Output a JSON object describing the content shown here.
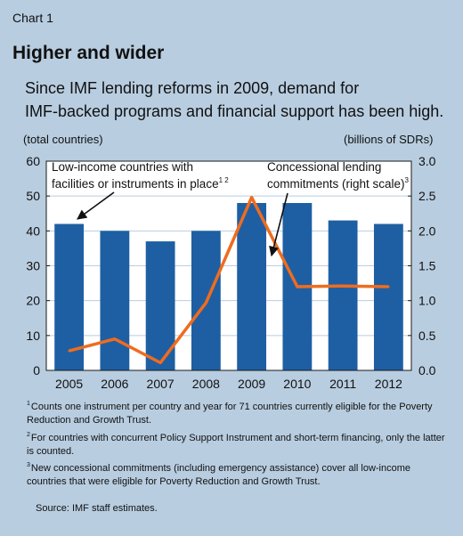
{
  "chart_label": "Chart 1",
  "title": "Higher and wider",
  "subtitle_line1": "Since IMF lending reforms in 2009, demand for",
  "subtitle_line2": "IMF-backed programs and financial support has been high.",
  "left_axis_unit": "(total countries)",
  "right_axis_unit": "(billions of SDRs)",
  "chart_data": {
    "type": "bar+line",
    "categories": [
      "2005",
      "2006",
      "2007",
      "2008",
      "2009",
      "2010",
      "2011",
      "2012"
    ],
    "series": [
      {
        "label_line1": "Low-income countries with",
        "label_line2": "facilities or instruments in place",
        "label_sup": "1 2",
        "type": "bar",
        "axis": "left",
        "color": "#1e5fa3",
        "values": [
          42,
          40,
          37,
          40,
          48,
          48,
          43,
          42
        ]
      },
      {
        "label_line1": "Concessional lending",
        "label_line2": "commitments (right scale)",
        "label_sup": "3",
        "type": "line",
        "axis": "right",
        "color": "#ef6c1f",
        "values": [
          0.28,
          0.45,
          0.11,
          0.97,
          2.48,
          1.2,
          1.21,
          1.2
        ]
      }
    ],
    "left_axis": {
      "min": 0,
      "max": 60,
      "ticks": [
        "0",
        "10",
        "20",
        "30",
        "40",
        "50",
        "60"
      ]
    },
    "right_axis": {
      "min": 0,
      "max": 3,
      "ticks": [
        "0.0",
        "0.5",
        "1.0",
        "1.5",
        "2.0",
        "2.5",
        "3.0"
      ]
    },
    "grid": true
  },
  "footnotes": [
    {
      "num": "1",
      "text": "Counts one instrument per country and year for 71 countries currently eligible for the Poverty Reduction and Growth Trust."
    },
    {
      "num": "2",
      "text": "For countries with concurrent Policy Support Instrument and short-term financing, only the latter is counted."
    },
    {
      "num": "3",
      "text": "New concessional commitments (including emergency assistance) cover all low-income countries that were eligible for Poverty Reduction and Growth Trust."
    }
  ],
  "source": "Source: IMF staff estimates."
}
